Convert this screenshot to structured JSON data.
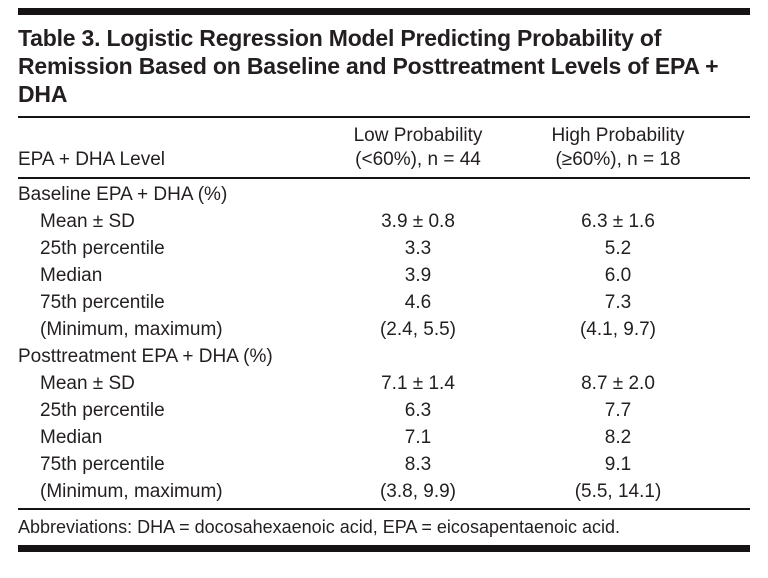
{
  "table": {
    "title": "Table 3. Logistic Regression Model Predicting Probability of Remission Based on Baseline and Posttreatment Levels of EPA + DHA",
    "columns": [
      {
        "label": "EPA + DHA Level"
      },
      {
        "line1": "Low Probability",
        "line2": "(<60%), n = 44"
      },
      {
        "line1": "High Probability",
        "line2": "(≥60%), n = 18"
      }
    ],
    "rows": [
      {
        "label": "Baseline EPA + DHA (%)",
        "low": "",
        "high": ""
      },
      {
        "label": "Mean ± SD",
        "low": "3.9 ± 0.8",
        "high": "6.3 ± 1.6"
      },
      {
        "label": "25th percentile",
        "low": "3.3",
        "high": "5.2"
      },
      {
        "label": "Median",
        "low": "3.9",
        "high": "6.0"
      },
      {
        "label": "75th percentile",
        "low": "4.6",
        "high": "7.3"
      },
      {
        "label": "(Minimum, maximum)",
        "low": "(2.4, 5.5)",
        "high": "(4.1, 9.7)"
      },
      {
        "label": "Posttreatment EPA + DHA (%)",
        "low": "",
        "high": ""
      },
      {
        "label": "Mean ± SD",
        "low": "7.1 ± 1.4",
        "high": "8.7 ± 2.0"
      },
      {
        "label": "25th percentile",
        "low": "6.3",
        "high": "7.7"
      },
      {
        "label": "Median",
        "low": "7.1",
        "high": "8.2"
      },
      {
        "label": "75th percentile",
        "low": "8.3",
        "high": "9.1"
      },
      {
        "label": "(Minimum, maximum)",
        "low": "(3.8, 9.9)",
        "high": "(5.5, 14.1)"
      }
    ],
    "footnote": "Abbreviations: DHA = docosahexaenoic acid, EPA = eicosapentaenoic acid."
  }
}
